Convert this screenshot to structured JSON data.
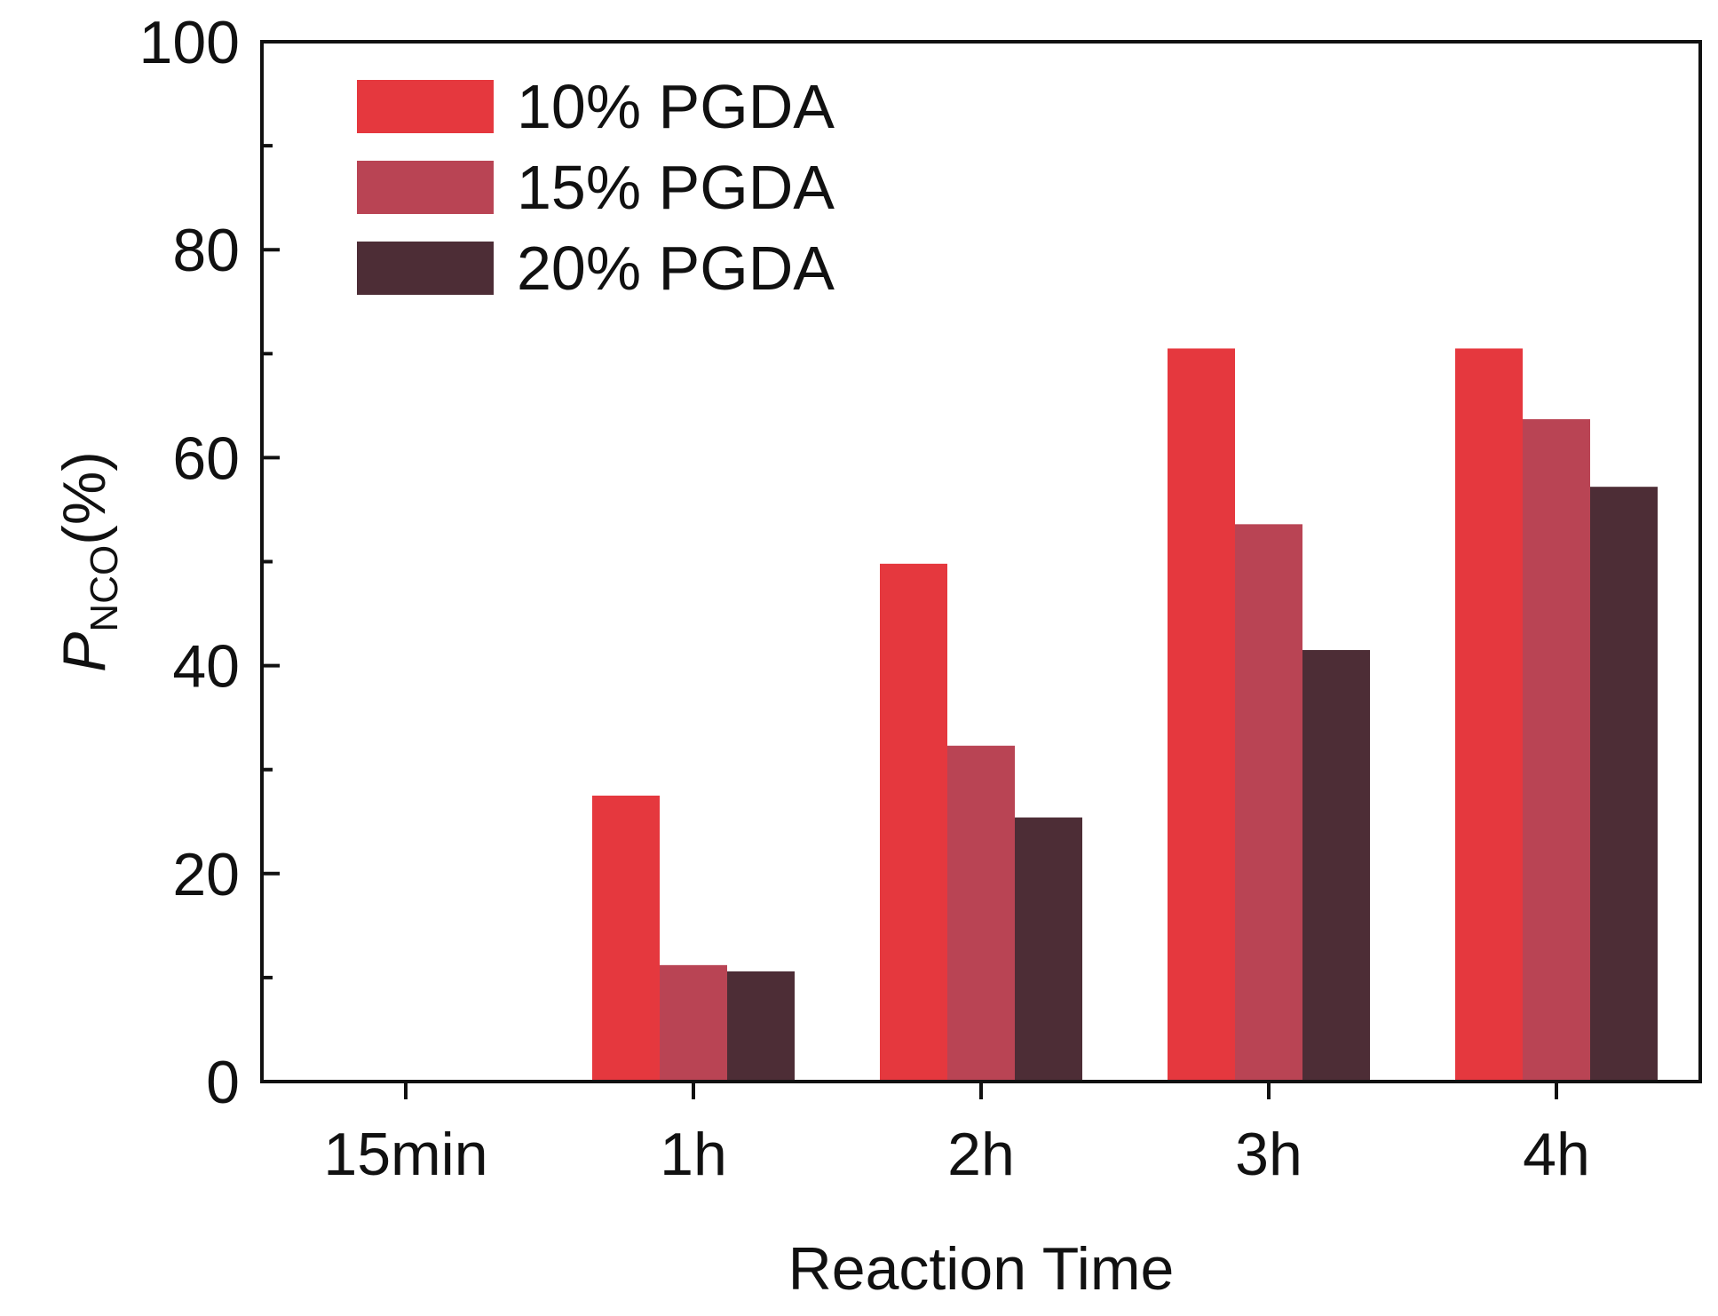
{
  "chart_data": {
    "type": "bar",
    "title": "",
    "xlabel": "Reaction Time",
    "ylabel": {
      "main": "P",
      "subscript": "NCO",
      "unit": "(%)"
    },
    "categories": [
      "15min",
      "1h",
      "2h",
      "3h",
      "4h"
    ],
    "ylim": [
      0,
      100
    ],
    "yticks": [
      0,
      20,
      40,
      60,
      80,
      100
    ],
    "yminor_ticks": [
      10,
      30,
      50,
      70,
      90
    ],
    "grid": false,
    "legend_position": "top-left",
    "series": [
      {
        "name": "10% PGDA",
        "color": "#e5383e",
        "values": [
          0,
          27.5,
          49.8,
          70.5,
          70.5
        ]
      },
      {
        "name": "15% PGDA",
        "color": "#b94454",
        "values": [
          0,
          11.2,
          32.3,
          53.6,
          63.7
        ]
      },
      {
        "name": "20% PGDA",
        "color": "#4d2d36",
        "values": [
          0,
          10.6,
          25.4,
          41.5,
          57.2
        ]
      }
    ]
  }
}
